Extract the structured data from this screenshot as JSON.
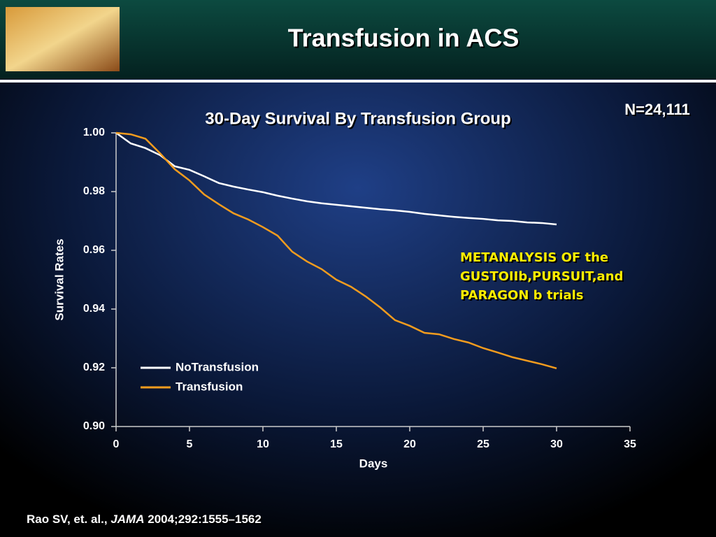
{
  "slide": {
    "title": "Transfusion in ACS",
    "n_label": "N=24,111",
    "annotation": [
      "METANALYSIS OF the",
      "GUSTOIIb,PURSUIT,and",
      "PARAGON b trials"
    ],
    "citation": {
      "authors": "Rao SV, et. al.,",
      "journal": "JAMA",
      "details": "2004;292:1555–1562"
    }
  },
  "chart_data": {
    "type": "line",
    "title": "30-Day Survival By Transfusion Group",
    "x_label": "Days",
    "y_label": "Survival Rates",
    "x": [
      0,
      1,
      2,
      3,
      4,
      5,
      6,
      7,
      8,
      9,
      10,
      11,
      12,
      13,
      14,
      15,
      16,
      17,
      18,
      19,
      20,
      21,
      22,
      23,
      24,
      25,
      26,
      27,
      28,
      29,
      30
    ],
    "series": [
      {
        "name": "NoTransfusion",
        "color": "#ffffff",
        "values": [
          1.0,
          0.9964,
          0.9948,
          0.9924,
          0.9886,
          0.9874,
          0.9852,
          0.9829,
          0.9817,
          0.9807,
          0.9798,
          0.9786,
          0.9776,
          0.9767,
          0.976,
          0.9755,
          0.975,
          0.9745,
          0.974,
          0.9736,
          0.9731,
          0.9724,
          0.9719,
          0.9714,
          0.971,
          0.9707,
          0.9702,
          0.97,
          0.9695,
          0.9693,
          0.9688
        ]
      },
      {
        "name": "Transfusion",
        "color": "#f39c1e",
        "values": [
          1.0,
          0.9995,
          0.998,
          0.993,
          0.9876,
          0.9838,
          0.979,
          0.9757,
          0.9726,
          0.9705,
          0.9679,
          0.965,
          0.9595,
          0.9562,
          0.9536,
          0.95,
          0.9476,
          0.9443,
          0.9405,
          0.9362,
          0.9343,
          0.9319,
          0.9314,
          0.9298,
          0.9286,
          0.9267,
          0.9252,
          0.9236,
          0.9224,
          0.9212,
          0.9198
        ]
      }
    ],
    "xlim": [
      0,
      35
    ],
    "xticks": [
      0,
      5,
      10,
      15,
      20,
      25,
      30,
      35
    ],
    "ylim": [
      0.9,
      1.0
    ],
    "yticks": [
      {
        "value": 0.9,
        "label": "0.90"
      },
      {
        "value": 0.92,
        "label": "0.92"
      },
      {
        "value": 0.94,
        "label": "0.94"
      },
      {
        "value": 0.96,
        "label": "0.96"
      },
      {
        "value": 0.98,
        "label": "0.98"
      },
      {
        "value": 1.0,
        "label": "1.00"
      }
    ],
    "grid": false
  }
}
